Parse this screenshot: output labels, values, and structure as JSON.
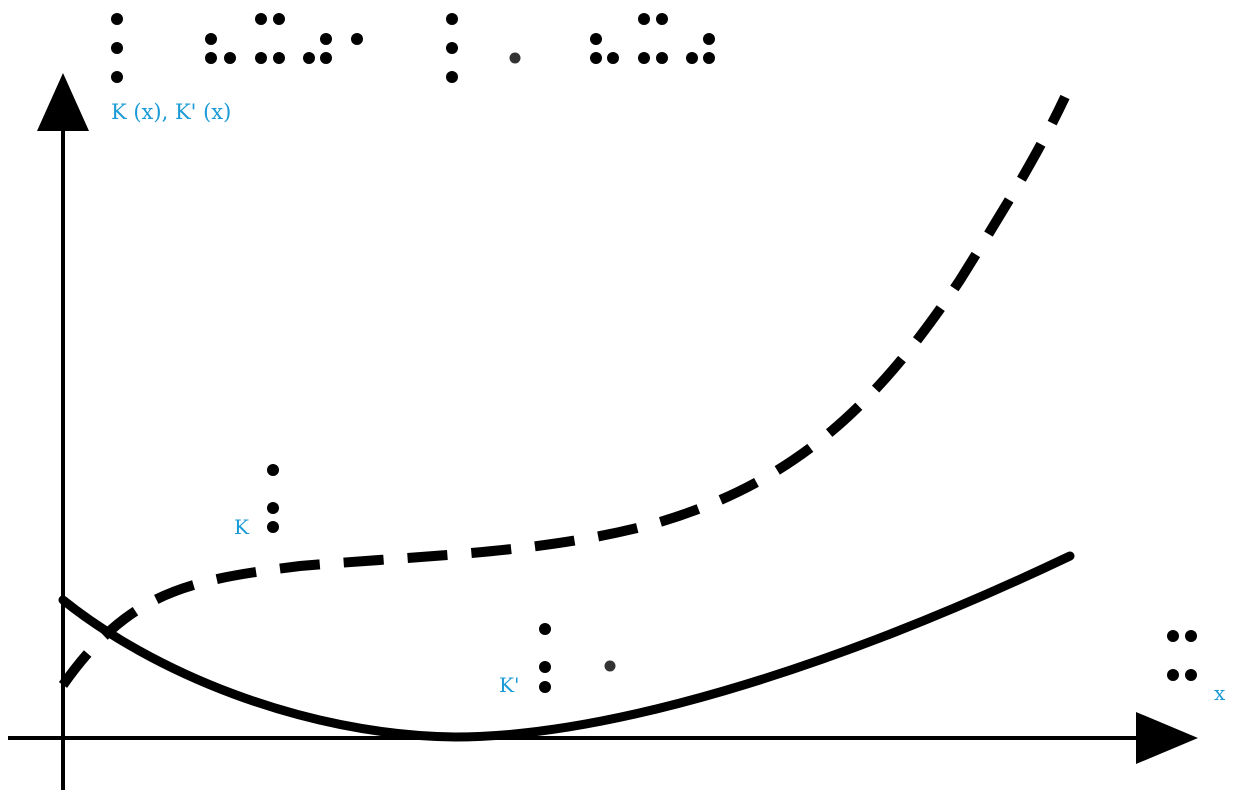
{
  "diagram": {
    "axis_label_y": "K (x), K' (x)",
    "axis_label_x": "x",
    "curve_label_k": "K",
    "curve_label_k_prime": "K'",
    "colors": {
      "label": "#1a9ad6",
      "ink": "#000000"
    }
  }
}
